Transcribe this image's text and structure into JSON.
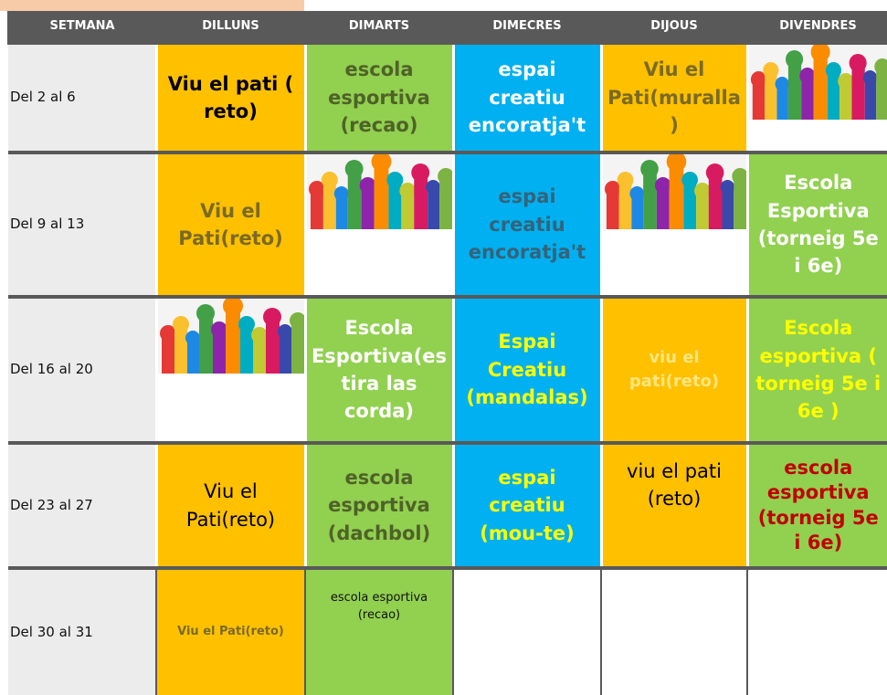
{
  "header": {
    "columns": [
      "SETMANA",
      "DILLUNS",
      "DIMARTS",
      "DIMECRES",
      "DIJOUS",
      "DIVENDRES"
    ]
  },
  "rows": [
    [
      "Del 2 al 6",
      "Viu el pati ( reto)",
      "escola esportiva (recao)",
      "espai creatiu encoratja't",
      "Viu el Pati(muralla )",
      null
    ],
    [
      "Del 9 al 13",
      "Viu el Pati(reto)",
      null,
      "espai creatiu encoratja't",
      null,
      "Escola Esportiva (torneig 5e i 6e)"
    ],
    [
      "Del 16 al 20",
      null,
      "Escola Esportiva(estira las corda)",
      "Espai Creatiu (mandalas)",
      "viu el pati(reto)",
      "Escola esportiva ( torneig 5e i 6e )"
    ],
    [
      "Del 23 al 27",
      "Viu el Pati(reto)",
      "escola esportiva (dachbol)",
      "espai creatiu (mou-te)",
      "viu el pati (reto)",
      "escola esportiva (torneig 5e i 6e)"
    ],
    [
      "Del 30 al 31",
      "Viu el Pati(reto)",
      "escola esportiva (recao)",
      null,
      null,
      null
    ]
  ]
}
